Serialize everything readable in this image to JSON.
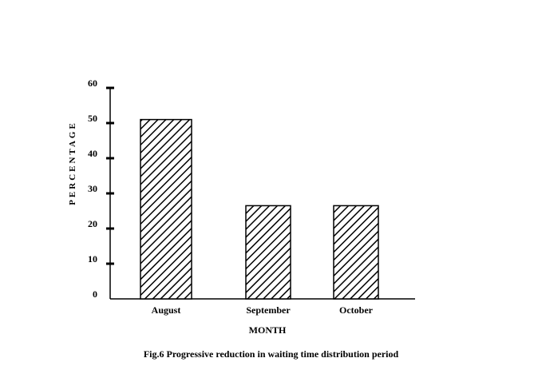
{
  "chart_data": {
    "type": "bar",
    "categories": [
      "August",
      "September",
      "October"
    ],
    "values": [
      51,
      26.5,
      26.5
    ],
    "xlabel": "MONTH",
    "ylabel": "PERCENTAGE",
    "ylim": [
      0,
      60
    ],
    "yticks": [
      {
        "value": 0,
        "label": "0"
      },
      {
        "value": 10,
        "label": "10"
      },
      {
        "value": 20,
        "label": "20"
      },
      {
        "value": 30,
        "label": "30"
      },
      {
        "value": 40,
        "label": "40"
      },
      {
        "value": 50,
        "label": "50"
      },
      {
        "value": 60,
        "label": "60"
      }
    ],
    "grid": false,
    "legend": "none",
    "bar_fill": "diagonal-hatch",
    "colors": {
      "bar_stroke": "#000000",
      "hatch": "#000000",
      "background": "#ffffff"
    }
  },
  "caption": "Fig.6  Progressive reduction in waiting time distribution period"
}
